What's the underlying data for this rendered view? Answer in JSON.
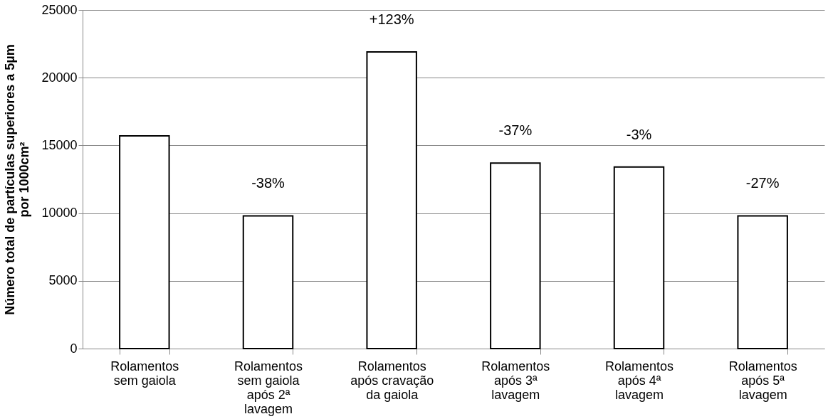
{
  "chart_data": {
    "type": "bar",
    "ylabel": "Número total de partículas  superiores a 5µm\npor 1000cm²",
    "categories": [
      "Rolamentos\nsem gaiola",
      "Rolamentos\nsem gaiola\napós 2ª\nlavagem",
      "Rolamentos\napós cravação\nda gaiola",
      "Rolamentos\napós 3ª\nlavagem",
      "Rolamentos\napós 4ª\nlavagem",
      "Rolamentos\napós 5ª\nlavagem"
    ],
    "values": [
      15700,
      9800,
      21900,
      13700,
      13400,
      9800
    ],
    "color": "#ffffff",
    "ylim": [
      0,
      25000
    ],
    "yticks": [
      0,
      5000,
      10000,
      15000,
      20000,
      25000
    ],
    "grid": "y",
    "annotations": [
      "-38%",
      "+123%",
      "-37%",
      "-3%",
      "-27%"
    ]
  }
}
